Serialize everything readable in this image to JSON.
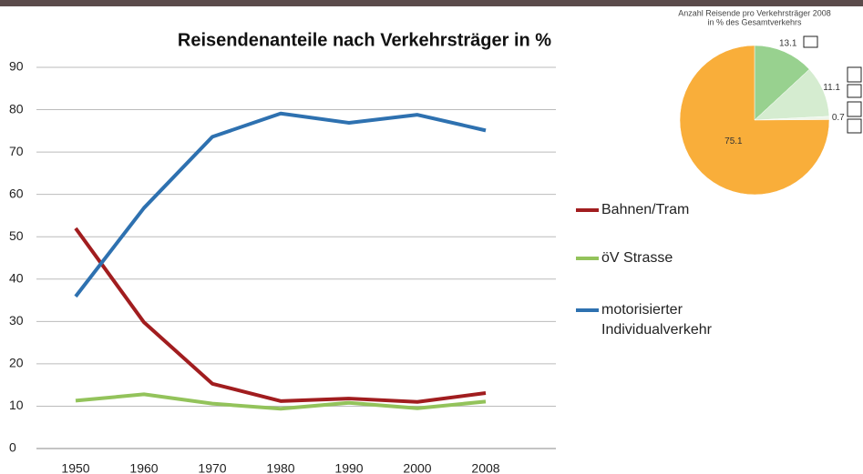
{
  "chart_data": [
    {
      "type": "line",
      "title": "Reisendenanteile nach Verkehrsträger in %",
      "categories": [
        "1950",
        "1960",
        "1970",
        "1980",
        "1990",
        "2000",
        "2008"
      ],
      "series": [
        {
          "name": "Bahnen/Tram",
          "color": "#a11d1f",
          "values": [
            52,
            29.8,
            15.3,
            11.2,
            11.8,
            11,
            13.1
          ]
        },
        {
          "name": "öV Strasse",
          "color": "#93c35b",
          "values": [
            11.3,
            12.8,
            10.6,
            9.4,
            10.8,
            9.5,
            11.1
          ]
        },
        {
          "name": "motorisierter Individualverkehr",
          "color": "#2e71b0",
          "values": [
            35.9,
            56.8,
            73.6,
            79.1,
            76.9,
            78.8,
            75.1
          ]
        }
      ],
      "ylim": [
        0,
        90
      ],
      "yticks": [
        0,
        10,
        20,
        30,
        40,
        50,
        60,
        70,
        80,
        90
      ],
      "grid": true
    },
    {
      "type": "pie",
      "title": "Anzahl Reisende pro Verkehrsträger 2008",
      "subtitle": "in % des Gesamtverkehrs",
      "values": [
        13.1,
        11.1,
        0.7,
        75.1
      ],
      "colors": [
        "#98d18f",
        "#d5ecd0",
        "#eef6ea",
        "#f9ae3a"
      ]
    }
  ]
}
